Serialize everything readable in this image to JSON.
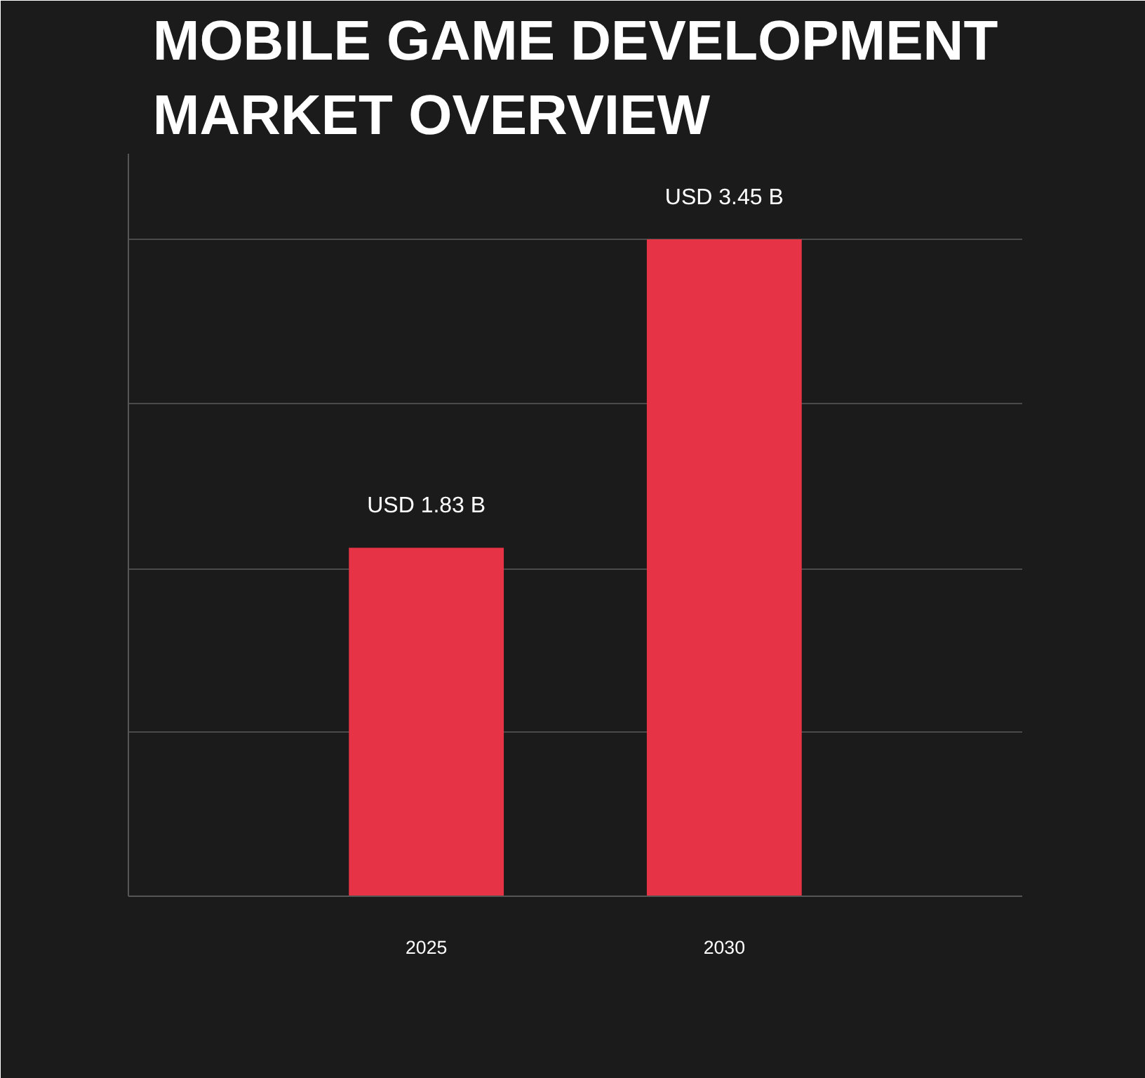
{
  "chart_data": {
    "type": "bar",
    "title": "MOBILE GAME DEVELOPMENT MARKET OVERVIEW",
    "categories": [
      "2025",
      "2030"
    ],
    "values": [
      1.83,
      3.45
    ],
    "value_labels": [
      "USD 1.83 B",
      "USD 3.45 B"
    ],
    "color": "#e63446",
    "ylim": [
      0,
      3.9
    ],
    "yticks": [
      {
        "value": 0,
        "label": null
      },
      {
        "value": 0.86,
        "label": null
      },
      {
        "value": 1.72,
        "label": null
      },
      {
        "value": 2.59,
        "label": null
      },
      {
        "value": 3.45,
        "label": null
      }
    ],
    "grid": "y",
    "tick_labels": "x"
  }
}
